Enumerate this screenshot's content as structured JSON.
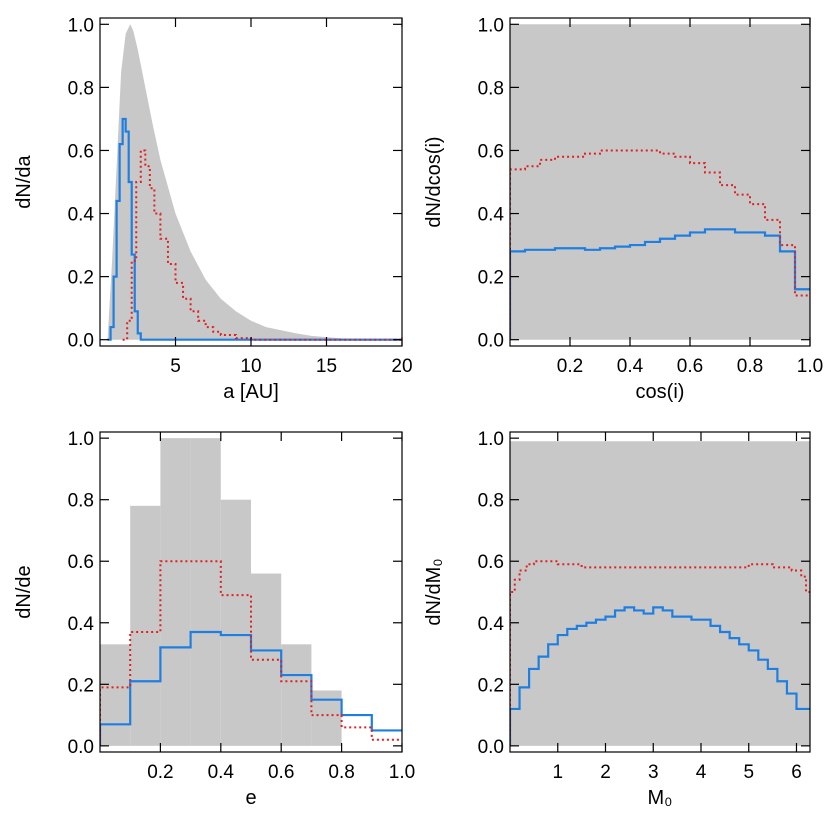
{
  "colors": {
    "gray_hist": "#c8c8c8",
    "blue": "#1f7fe0",
    "red": "#e02020",
    "axis": "#000000"
  },
  "chart_data": [
    {
      "type": "bar",
      "panel": "top-left",
      "xlabel": "a [AU]",
      "ylabel": "dN/da",
      "xlim": [
        0,
        20
      ],
      "ylim": [
        -0.02,
        1.02
      ],
      "xticks": [
        5,
        10,
        15,
        20
      ],
      "xtick_labels": [
        "5",
        "10",
        "15",
        "20"
      ],
      "yticks": [
        0.0,
        0.2,
        0.4,
        0.6,
        0.8,
        1.0
      ],
      "ytick_labels": [
        "0.0",
        "0.2",
        "0.4",
        "0.6",
        "0.8",
        "1.0"
      ],
      "gray_curve": {
        "x": [
          0.5,
          0.8,
          1.1,
          1.4,
          1.7,
          2.0,
          2.2,
          2.5,
          3.0,
          3.5,
          4.0,
          5.0,
          6.0,
          7.0,
          8.0,
          9.0,
          10.0,
          11.0,
          12.0,
          13.0,
          14.0,
          15.0,
          16.0,
          18.0,
          20.0
        ],
        "y": [
          0.0,
          0.25,
          0.55,
          0.85,
          0.97,
          1.0,
          0.98,
          0.92,
          0.8,
          0.68,
          0.57,
          0.4,
          0.28,
          0.19,
          0.13,
          0.09,
          0.06,
          0.04,
          0.03,
          0.02,
          0.012,
          0.008,
          0.004,
          0.002,
          0.0
        ]
      },
      "series": [
        {
          "color": "blue",
          "style": "solid",
          "step": true,
          "x": [
            0.5,
            0.7,
            0.9,
            1.1,
            1.3,
            1.5,
            1.7,
            1.9,
            2.1,
            2.3,
            2.5,
            2.7,
            20.0
          ],
          "y": [
            0.0,
            0.04,
            0.2,
            0.44,
            0.62,
            0.7,
            0.66,
            0.5,
            0.27,
            0.09,
            0.02,
            0.0,
            0.0
          ]
        },
        {
          "color": "red",
          "style": "dotted",
          "step": true,
          "x": [
            1.5,
            1.8,
            2.1,
            2.4,
            2.7,
            3.0,
            3.3,
            3.6,
            4.0,
            4.5,
            5.0,
            5.5,
            6.0,
            6.5,
            7.0,
            7.5,
            8.0,
            9.0,
            10.0,
            20.0
          ],
          "y": [
            0.0,
            0.06,
            0.25,
            0.5,
            0.6,
            0.55,
            0.48,
            0.4,
            0.32,
            0.24,
            0.18,
            0.13,
            0.09,
            0.06,
            0.04,
            0.025,
            0.015,
            0.005,
            0.0,
            0.0
          ]
        }
      ]
    },
    {
      "type": "bar",
      "panel": "top-right",
      "xlabel": "cos(i)",
      "ylabel": "dN/dcos(i)",
      "xlim": [
        0,
        1
      ],
      "ylim": [
        -0.02,
        1.02
      ],
      "xticks": [
        0.2,
        0.4,
        0.6,
        0.8,
        1.0
      ],
      "xtick_labels": [
        "0.2",
        "0.4",
        "0.6",
        "0.8",
        "1.0"
      ],
      "yticks": [
        0.0,
        0.2,
        0.4,
        0.6,
        0.8,
        1.0
      ],
      "ytick_labels": [
        "0.0",
        "0.2",
        "0.4",
        "0.6",
        "0.8",
        "1.0"
      ],
      "gray_curve": {
        "x": [
          0.0,
          1.0
        ],
        "y": [
          1.0,
          1.0
        ]
      },
      "series": [
        {
          "color": "blue",
          "style": "solid",
          "step": true,
          "x": [
            0.0,
            0.05,
            0.1,
            0.15,
            0.2,
            0.25,
            0.3,
            0.35,
            0.4,
            0.45,
            0.5,
            0.55,
            0.6,
            0.65,
            0.7,
            0.75,
            0.8,
            0.85,
            0.9,
            0.95,
            1.0
          ],
          "y": [
            0.28,
            0.285,
            0.285,
            0.29,
            0.29,
            0.285,
            0.29,
            0.295,
            0.3,
            0.31,
            0.32,
            0.33,
            0.34,
            0.35,
            0.35,
            0.34,
            0.34,
            0.33,
            0.28,
            0.16,
            0.16
          ]
        },
        {
          "color": "red",
          "style": "dotted",
          "step": true,
          "x": [
            0.0,
            0.05,
            0.1,
            0.15,
            0.2,
            0.25,
            0.3,
            0.35,
            0.4,
            0.45,
            0.5,
            0.55,
            0.6,
            0.65,
            0.7,
            0.75,
            0.8,
            0.85,
            0.9,
            0.95,
            1.0
          ],
          "y": [
            0.54,
            0.55,
            0.57,
            0.58,
            0.58,
            0.59,
            0.6,
            0.6,
            0.6,
            0.6,
            0.59,
            0.58,
            0.56,
            0.53,
            0.49,
            0.46,
            0.43,
            0.38,
            0.3,
            0.14,
            0.14
          ]
        }
      ]
    },
    {
      "type": "bar",
      "panel": "bottom-left",
      "xlabel": "e",
      "ylabel": "dN/de",
      "xlim": [
        0,
        1
      ],
      "ylim": [
        -0.02,
        1.02
      ],
      "xticks": [
        0.2,
        0.4,
        0.6,
        0.8,
        1.0
      ],
      "xtick_labels": [
        "0.2",
        "0.4",
        "0.6",
        "0.8",
        "1.0"
      ],
      "yticks": [
        0.0,
        0.2,
        0.4,
        0.6,
        0.8,
        1.0
      ],
      "ytick_labels": [
        "0.0",
        "0.2",
        "0.4",
        "0.6",
        "0.8",
        "1.0"
      ],
      "gray_bins": {
        "edges": [
          0.0,
          0.1,
          0.2,
          0.3,
          0.4,
          0.5,
          0.6,
          0.7,
          0.8,
          0.9,
          1.0
        ],
        "values": [
          0.33,
          0.78,
          1.0,
          1.0,
          0.8,
          0.56,
          0.33,
          0.18,
          0.0,
          0.0
        ]
      },
      "series": [
        {
          "color": "blue",
          "style": "solid",
          "step": true,
          "edges": [
            0.0,
            0.1,
            0.2,
            0.3,
            0.4,
            0.5,
            0.6,
            0.7,
            0.8,
            0.9,
            1.0
          ],
          "values": [
            0.07,
            0.21,
            0.32,
            0.37,
            0.36,
            0.31,
            0.23,
            0.15,
            0.1,
            0.05
          ]
        },
        {
          "color": "red",
          "style": "dotted",
          "step": true,
          "edges": [
            0.0,
            0.1,
            0.2,
            0.3,
            0.4,
            0.5,
            0.6,
            0.7,
            0.8,
            0.9,
            1.0
          ],
          "values": [
            0.19,
            0.37,
            0.6,
            0.6,
            0.49,
            0.28,
            0.21,
            0.1,
            0.06,
            0.02
          ]
        }
      ]
    },
    {
      "type": "bar",
      "panel": "bottom-right",
      "xlabel": "M₀",
      "ylabel": "dN/dM₀",
      "xlim": [
        0,
        6.283
      ],
      "ylim": [
        -0.02,
        1.02
      ],
      "xticks": [
        1,
        2,
        3,
        4,
        5,
        6
      ],
      "xtick_labels": [
        "1",
        "2",
        "3",
        "4",
        "5",
        "6"
      ],
      "yticks": [
        0.0,
        0.2,
        0.4,
        0.6,
        0.8,
        1.0
      ],
      "ytick_labels": [
        "0.0",
        "0.2",
        "0.4",
        "0.6",
        "0.8",
        "1.0"
      ],
      "gray_curve": {
        "x": [
          0.0,
          6.283
        ],
        "y": [
          0.99,
          0.99
        ]
      },
      "series": [
        {
          "color": "blue",
          "style": "solid",
          "step": true,
          "x": [
            0.0,
            0.2,
            0.4,
            0.6,
            0.8,
            1.0,
            1.2,
            1.4,
            1.6,
            1.8,
            2.0,
            2.2,
            2.4,
            2.6,
            2.8,
            3.0,
            3.2,
            3.4,
            3.6,
            3.8,
            4.0,
            4.2,
            4.4,
            4.6,
            4.8,
            5.0,
            5.2,
            5.4,
            5.6,
            5.8,
            6.0,
            6.283
          ],
          "y": [
            0.12,
            0.19,
            0.25,
            0.29,
            0.33,
            0.36,
            0.38,
            0.39,
            0.4,
            0.41,
            0.42,
            0.44,
            0.45,
            0.44,
            0.43,
            0.45,
            0.44,
            0.42,
            0.42,
            0.41,
            0.41,
            0.39,
            0.37,
            0.35,
            0.33,
            0.31,
            0.28,
            0.25,
            0.21,
            0.17,
            0.12,
            0.12
          ]
        },
        {
          "color": "red",
          "style": "dotted",
          "step": true,
          "x": [
            0.0,
            0.1,
            0.2,
            0.35,
            0.5,
            0.7,
            1.0,
            1.5,
            2.0,
            2.5,
            3.0,
            3.5,
            4.0,
            4.5,
            5.0,
            5.5,
            5.9,
            6.1,
            6.2,
            6.283
          ],
          "y": [
            0.5,
            0.54,
            0.57,
            0.59,
            0.6,
            0.6,
            0.59,
            0.58,
            0.58,
            0.58,
            0.58,
            0.58,
            0.58,
            0.58,
            0.59,
            0.58,
            0.57,
            0.55,
            0.5,
            0.5
          ]
        }
      ]
    }
  ]
}
